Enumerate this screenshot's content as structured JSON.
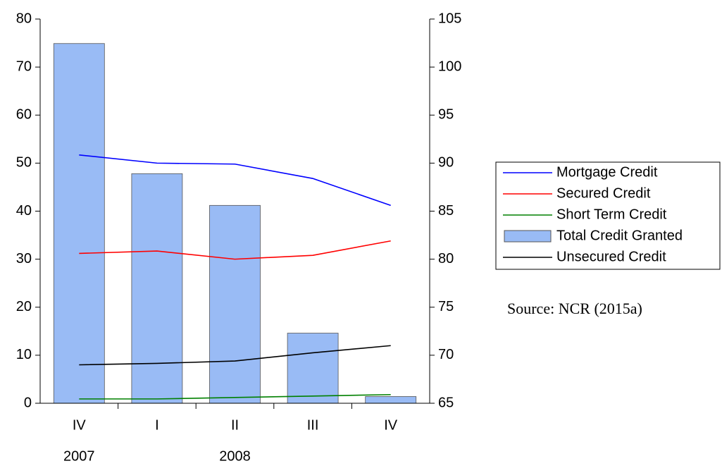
{
  "chart_data": {
    "type": "bar_line",
    "categories": [
      "IV",
      "I",
      "II",
      "III",
      "IV"
    ],
    "year_labels": [
      "2007",
      null,
      "2008",
      null,
      null
    ],
    "series": [
      {
        "name": "Mortgage Credit",
        "type": "line",
        "color": "#0000ff",
        "values": [
          51.7,
          50.0,
          49.8,
          46.8,
          41.2
        ]
      },
      {
        "name": "Secured Credit",
        "type": "line",
        "color": "#ff0000",
        "values": [
          31.2,
          31.7,
          30.0,
          30.8,
          33.8
        ]
      },
      {
        "name": "Short Term Credit",
        "type": "line",
        "color": "#008000",
        "values": [
          0.9,
          0.9,
          1.2,
          1.5,
          1.8
        ]
      },
      {
        "name": "Total Credit Granted",
        "type": "bar",
        "axis": "y2",
        "color": "#99bbf5",
        "values": [
          102.45,
          88.9,
          85.6,
          72.3,
          65.7
        ]
      },
      {
        "name": "Unsecured Credit",
        "type": "line",
        "color": "#000000",
        "values": [
          8.0,
          8.3,
          8.8,
          10.5,
          12.0
        ]
      }
    ],
    "ylim": [
      0,
      80
    ],
    "yticks": [
      0,
      10,
      20,
      30,
      40,
      50,
      60,
      70,
      80
    ],
    "y2lim": [
      65,
      105
    ],
    "y2ticks": [
      65,
      70,
      75,
      80,
      85,
      90,
      95,
      100,
      105
    ],
    "grid": false,
    "legend": "right",
    "source": "Source: NCR (2015a)"
  }
}
